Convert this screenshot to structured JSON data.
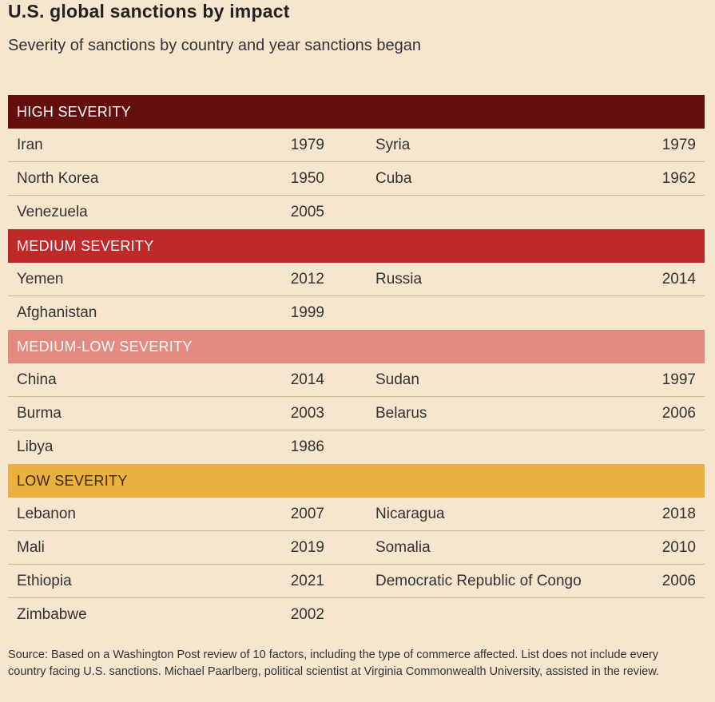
{
  "title": "U.S. global sanctions by impact",
  "subtitle": "Severity of sanctions by country and year sanctions began",
  "groups": [
    {
      "label": "HIGH SEVERITY",
      "color": "#640f0e",
      "rows": [
        {
          "c1": "Iran",
          "y1": "1979",
          "c2": "Syria",
          "y2": "1979"
        },
        {
          "c1": "North Korea",
          "y1": "1950",
          "c2": "Cuba",
          "y2": "1962"
        },
        {
          "c1": "Venezuela",
          "y1": "2005",
          "c2": "",
          "y2": ""
        }
      ]
    },
    {
      "label": "MEDIUM SEVERITY",
      "color": "#c0292a",
      "rows": [
        {
          "c1": "Yemen",
          "y1": "2012",
          "c2": "Russia",
          "y2": "2014"
        },
        {
          "c1": "Afghanistan",
          "y1": "1999",
          "c2": "",
          "y2": ""
        }
      ]
    },
    {
      "label": "MEDIUM-LOW SEVERITY",
      "color": "#e58a80",
      "rows": [
        {
          "c1": "China",
          "y1": "2014",
          "c2": "Sudan",
          "y2": "1997"
        },
        {
          "c1": "Burma",
          "y1": "2003",
          "c2": "Belarus",
          "y2": "2006"
        },
        {
          "c1": "Libya",
          "y1": "1986",
          "c2": "",
          "y2": ""
        }
      ]
    },
    {
      "label": "LOW SEVERITY",
      "color": "#ebb040",
      "rows": [
        {
          "c1": "Lebanon",
          "y1": "2007",
          "c2": "Nicaragua",
          "y2": "2018"
        },
        {
          "c1": "Mali",
          "y1": "2019",
          "c2": "Somalia",
          "y2": "2010"
        },
        {
          "c1": "Ethiopia",
          "y1": "2021",
          "c2": "Democratic Republic of Congo",
          "y2": "2006"
        },
        {
          "c1": "Zimbabwe",
          "y1": "2002",
          "c2": "",
          "y2": ""
        }
      ]
    }
  ],
  "source": "Source: Based on a Washington Post review of 10 factors, including the type of commerce affected. List does not include every country facing U.S. sanctions. Michael Paarlberg, political scientist at Virginia Commonwealth University, assisted in the review."
}
